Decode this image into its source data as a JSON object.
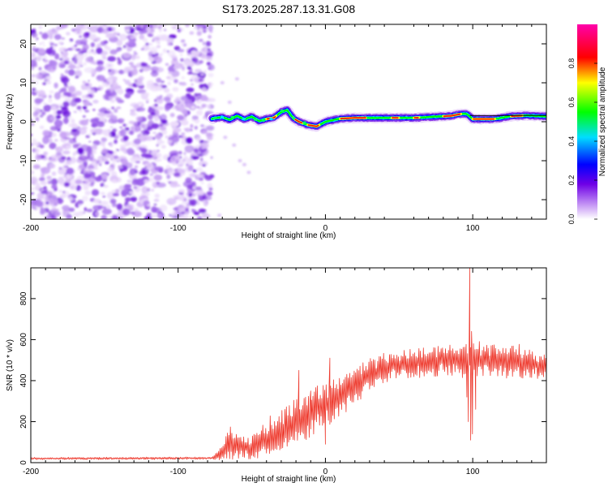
{
  "title": "S173.2025.287.13.31.G08",
  "chart_data": [
    {
      "type": "heatmap",
      "name": "spectrogram",
      "xlabel": "Height of straight line (km)",
      "ylabel": "Frequency (Hz)",
      "xlim": [
        -200,
        150
      ],
      "ylim": [
        -25,
        25
      ],
      "xticks": [
        -200,
        -100,
        0,
        100
      ],
      "yticks": [
        -20,
        -10,
        0,
        10,
        20
      ],
      "noise_region": {
        "x": [
          -200,
          -77
        ],
        "y": [
          -25,
          25
        ]
      },
      "ridge": [
        {
          "x": -77,
          "f": 0.8
        },
        {
          "x": -70,
          "f": 1.2
        },
        {
          "x": -65,
          "f": 0.5
        },
        {
          "x": -60,
          "f": 1.5
        },
        {
          "x": -55,
          "f": 0.6
        },
        {
          "x": -50,
          "f": 1.3
        },
        {
          "x": -45,
          "f": 0.2
        },
        {
          "x": -40,
          "f": 0.7
        },
        {
          "x": -35,
          "f": 1.0
        },
        {
          "x": -30,
          "f": 2.5
        },
        {
          "x": -26,
          "f": 3.0
        },
        {
          "x": -22,
          "f": 1.0
        },
        {
          "x": -18,
          "f": 0.0
        },
        {
          "x": -12,
          "f": -0.8
        },
        {
          "x": -6,
          "f": -1.2
        },
        {
          "x": 0,
          "f": 0.0
        },
        {
          "x": 10,
          "f": 0.8
        },
        {
          "x": 20,
          "f": 1.0
        },
        {
          "x": 40,
          "f": 1.0
        },
        {
          "x": 60,
          "f": 1.0
        },
        {
          "x": 75,
          "f": 1.3
        },
        {
          "x": 85,
          "f": 1.5
        },
        {
          "x": 92,
          "f": 2.0
        },
        {
          "x": 96,
          "f": 2.0
        },
        {
          "x": 100,
          "f": 0.7
        },
        {
          "x": 115,
          "f": 0.7
        },
        {
          "x": 125,
          "f": 1.4
        },
        {
          "x": 135,
          "f": 1.6
        },
        {
          "x": 150,
          "f": 1.4
        }
      ],
      "colorbar": {
        "label": "Normalized spectral amplitude",
        "range": [
          0,
          1
        ],
        "ticks": [
          "0.0",
          "0.2",
          "0.4",
          "0.6",
          "0.8"
        ],
        "tick_values": [
          0.0,
          0.2,
          0.4,
          0.6,
          0.8
        ],
        "colors": [
          "#ffffff",
          "#7a00e6",
          "#0000ff",
          "#00e5ff",
          "#00ff00",
          "#ffff00",
          "#ff0000",
          "#ff00aa"
        ]
      }
    },
    {
      "type": "line",
      "name": "snr",
      "xlabel": "Height of straight line (km)",
      "ylabel": "SNR (10 * v/v)",
      "xlim": [
        -200,
        150
      ],
      "ylim": [
        0,
        950
      ],
      "xticks": [
        -200,
        -100,
        0,
        100
      ],
      "yticks": [
        0,
        200,
        400,
        600,
        800
      ],
      "color": "#ee3b2f",
      "envelope": [
        {
          "x": -200,
          "mean": 20,
          "amp": 6
        },
        {
          "x": -78,
          "mean": 22,
          "amp": 6
        },
        {
          "x": -70,
          "mean": 45,
          "amp": 35
        },
        {
          "x": -66,
          "mean": 100,
          "amp": 90
        },
        {
          "x": -60,
          "mean": 80,
          "amp": 60
        },
        {
          "x": -50,
          "mean": 70,
          "amp": 60
        },
        {
          "x": -40,
          "mean": 110,
          "amp": 90
        },
        {
          "x": -30,
          "mean": 160,
          "amp": 110
        },
        {
          "x": -20,
          "mean": 200,
          "amp": 110
        },
        {
          "x": -10,
          "mean": 240,
          "amp": 110
        },
        {
          "x": 0,
          "mean": 280,
          "amp": 120
        },
        {
          "x": 10,
          "mean": 330,
          "amp": 110
        },
        {
          "x": 20,
          "mean": 380,
          "amp": 100
        },
        {
          "x": 30,
          "mean": 430,
          "amp": 80
        },
        {
          "x": 45,
          "mean": 470,
          "amp": 70
        },
        {
          "x": 70,
          "mean": 490,
          "amp": 70
        },
        {
          "x": 90,
          "mean": 505,
          "amp": 80
        },
        {
          "x": 110,
          "mean": 500,
          "amp": 80
        },
        {
          "x": 130,
          "mean": 495,
          "amp": 80
        },
        {
          "x": 150,
          "mean": 470,
          "amp": 60
        }
      ],
      "features": [
        {
          "x": -18,
          "y": 450
        },
        {
          "x": -10,
          "y": 350
        },
        {
          "x": 0,
          "y": 90
        },
        {
          "x": 3,
          "y": 510
        },
        {
          "x": 96,
          "y": 320
        },
        {
          "x": 97,
          "y": 200
        },
        {
          "x": 98,
          "y": 950
        },
        {
          "x": 98.6,
          "y": 110
        },
        {
          "x": 99.2,
          "y": 640
        },
        {
          "x": 99.8,
          "y": 140
        },
        {
          "x": 100.5,
          "y": 560
        },
        {
          "x": 102,
          "y": 260
        }
      ]
    }
  ]
}
